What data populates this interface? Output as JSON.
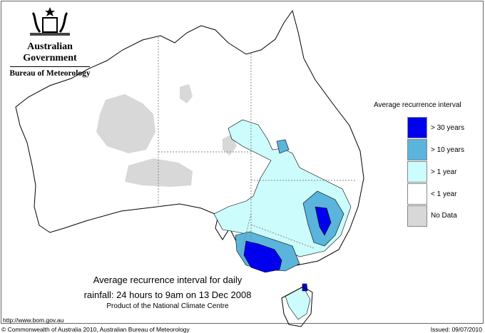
{
  "header": {
    "government": "Australian Government",
    "bureau": "Bureau of Meteorology"
  },
  "legend": {
    "title": "Average recurrence interval",
    "items": [
      {
        "label": "> 30 years",
        "color": "#0000ee"
      },
      {
        "label": "> 10 years",
        "color": "#5ab4dc"
      },
      {
        "label": "> 1 year",
        "color": "#ccfcfc"
      },
      {
        "label": "< 1 year",
        "color": "#ffffff"
      },
      {
        "label": "No Data",
        "color": "#d8d8d8"
      }
    ]
  },
  "title": {
    "line1": "Average recurrence interval for daily",
    "line2": "rainfall: 24 hours to 9am on 13 Dec 2008",
    "product": "Product of the National Climate Centre"
  },
  "footer": {
    "url": "http://www.bom.gov.au",
    "copyright": "© Commonwealth of Australia 2010, Australian Bureau of Meteorology",
    "issued": "Issued: 09/07/2010"
  }
}
